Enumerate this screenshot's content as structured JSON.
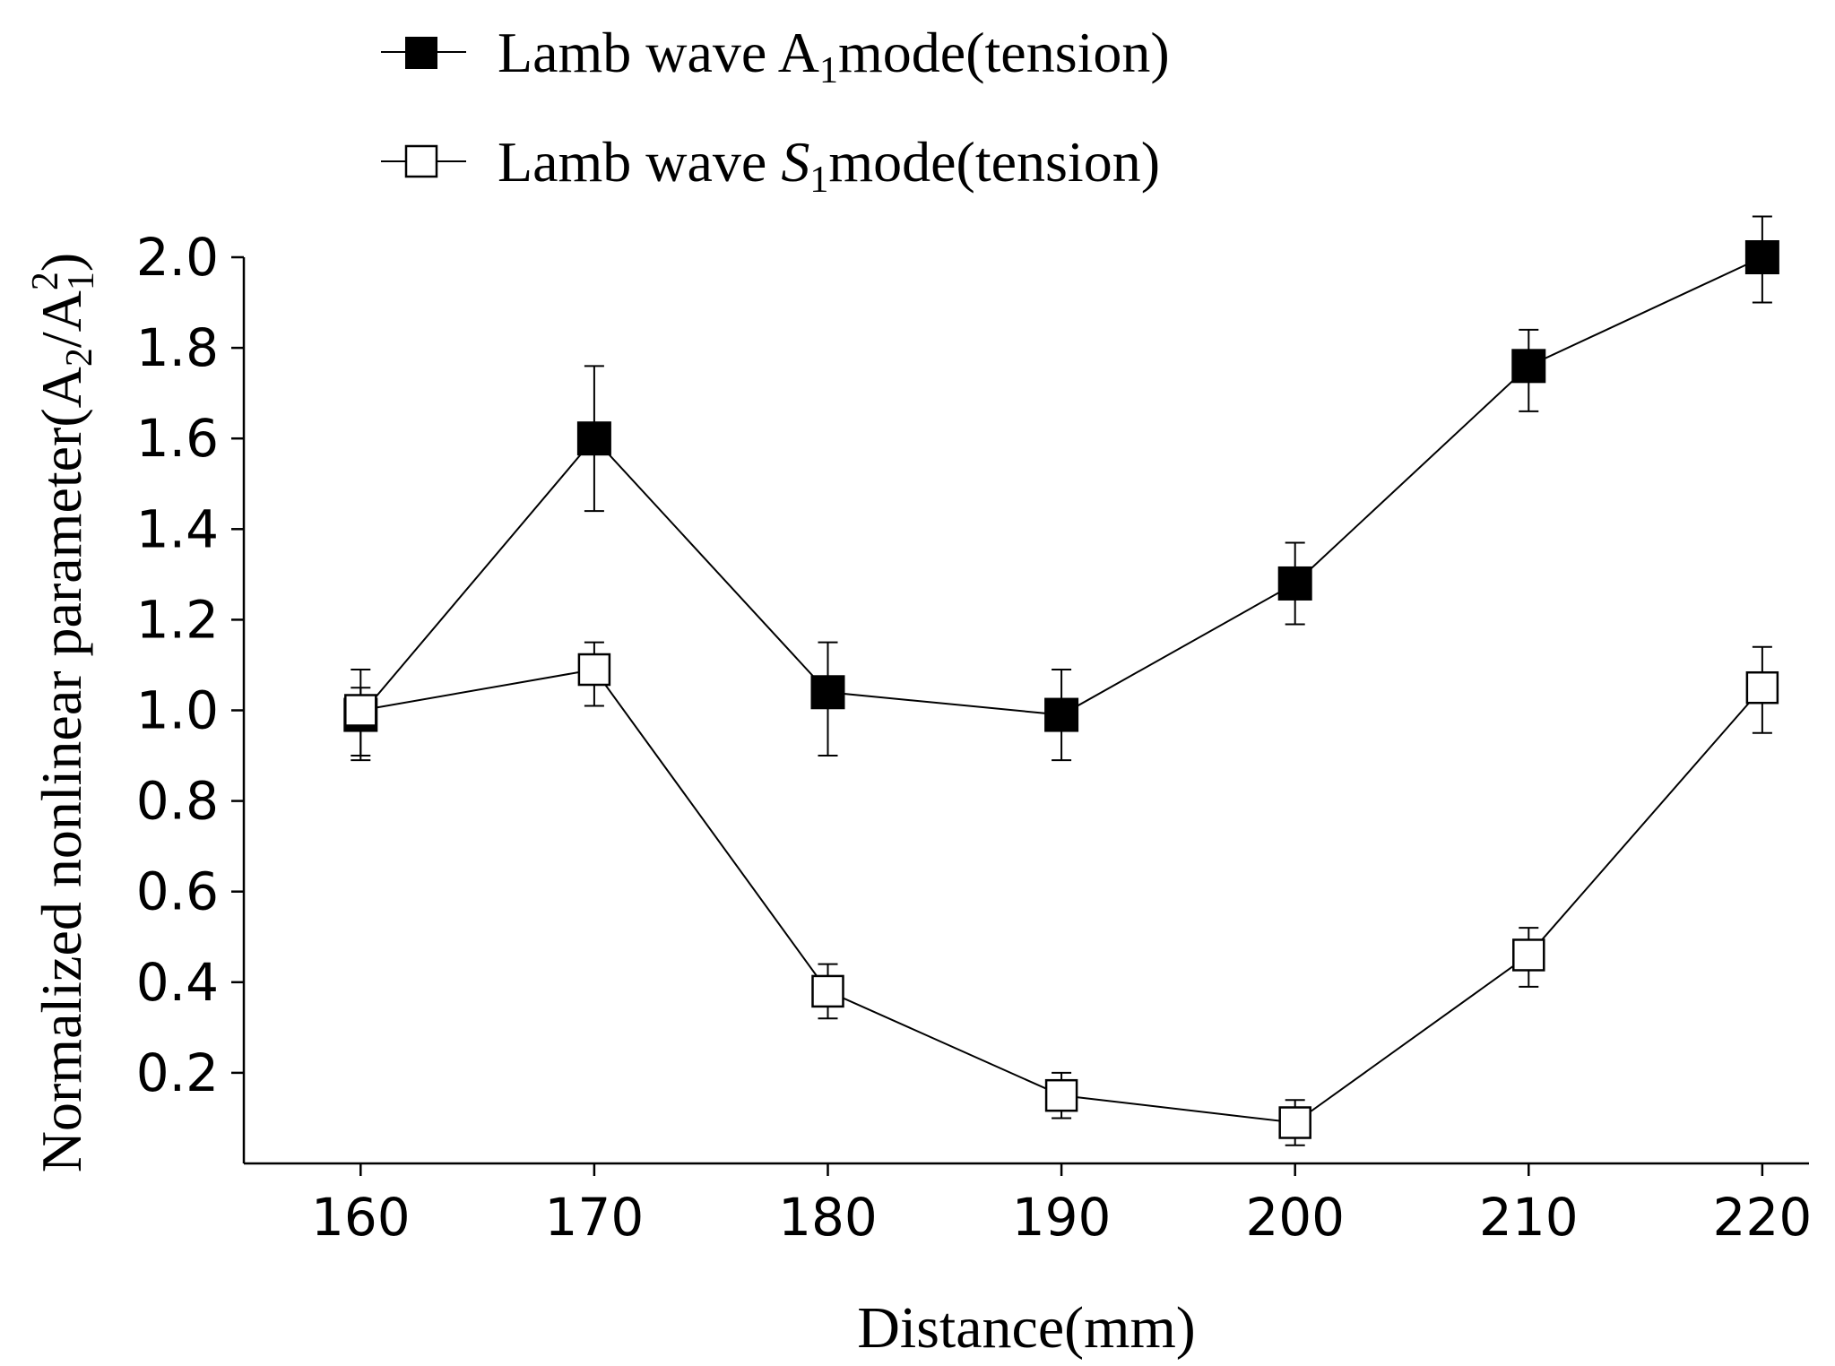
{
  "chart_data": {
    "type": "line",
    "title": "",
    "xlabel": "Distance(mm)",
    "ylabel": {
      "prefix": "Normalized nonlinear parameter(",
      "num": "A",
      "num_sub": "2",
      "slash": "/",
      "den": "A",
      "den_sub": "1",
      "den_sup": "2",
      "suffix": ")"
    },
    "x": [
      160,
      170,
      180,
      190,
      200,
      210,
      220
    ],
    "xlim": [
      155,
      222
    ],
    "ylim": [
      0,
      2.0
    ],
    "xticks": [
      "160",
      "170",
      "180",
      "190",
      "200",
      "210",
      "220"
    ],
    "yticks": [
      "0.2",
      "0.4",
      "0.6",
      "0.8",
      "1.0",
      "1.2",
      "1.4",
      "1.6",
      "1.8",
      "2.0"
    ],
    "legend_position": "top",
    "series": [
      {
        "name": "Lamb wave A1 mode(tension)",
        "legend": {
          "before": "Lamb wave A",
          "sub": "1",
          "after": "mode(tension)",
          "italic": false
        },
        "marker": "filled-square",
        "values": [
          0.99,
          1.6,
          1.04,
          0.99,
          1.28,
          1.76,
          2.0
        ],
        "err_low": [
          0.1,
          0.16,
          0.14,
          0.1,
          0.09,
          0.1,
          0.1
        ],
        "err_high": [
          0.1,
          0.16,
          0.11,
          0.1,
          0.09,
          0.08,
          0.09
        ],
        "color": "#000000"
      },
      {
        "name": "Lamb wave S1 mode(tension)",
        "legend": {
          "before": "Lamb wave ",
          "italic_letter": "S",
          "sub": "1",
          "after": "mode(tension)",
          "italic": true
        },
        "marker": "open-square",
        "values": [
          1.0,
          1.09,
          0.38,
          0.15,
          0.09,
          0.46,
          1.05
        ],
        "err_low": [
          0.1,
          0.08,
          0.06,
          0.05,
          0.05,
          0.07,
          0.1
        ],
        "err_high": [
          0.05,
          0.06,
          0.06,
          0.05,
          0.05,
          0.06,
          0.09
        ],
        "color": "#000000"
      }
    ]
  }
}
